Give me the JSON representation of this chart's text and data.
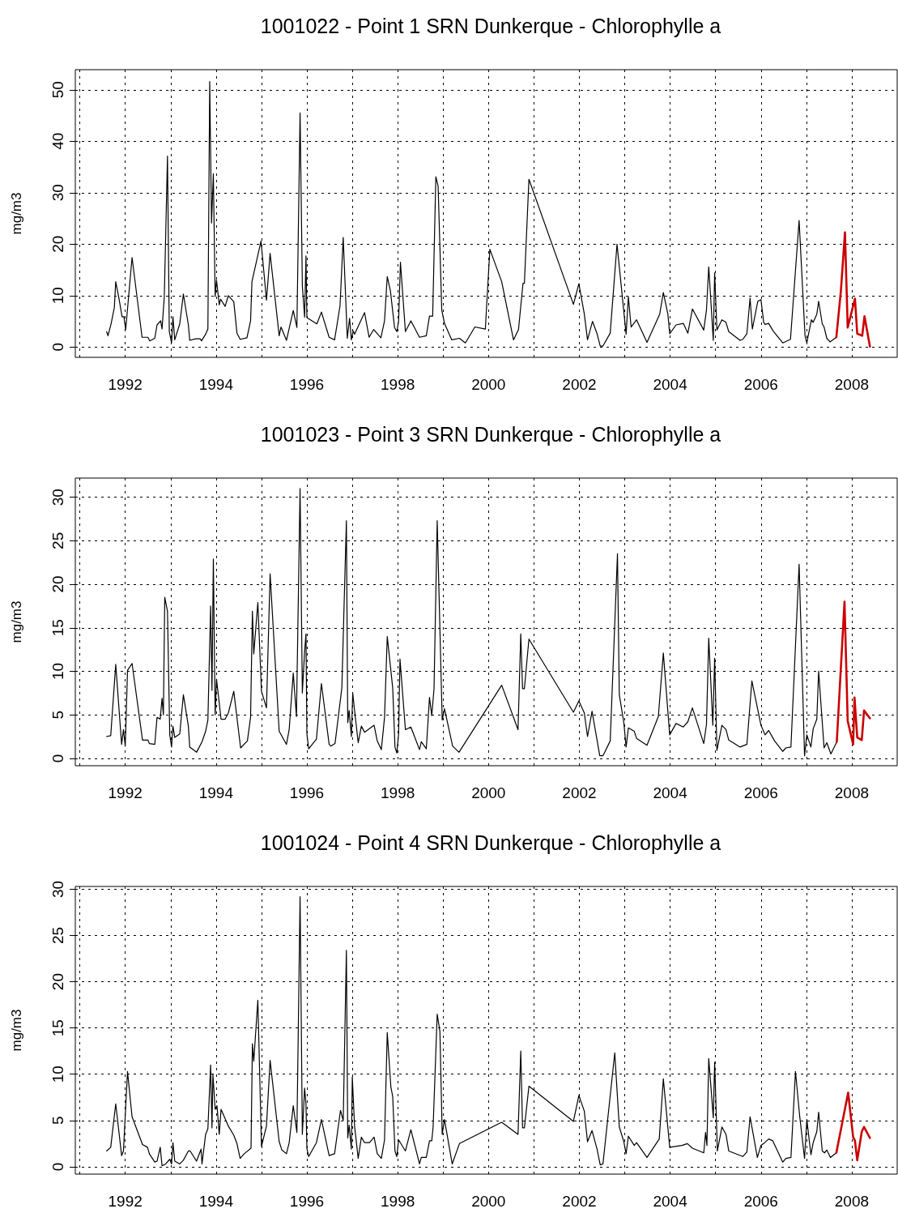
{
  "chart_data": [
    {
      "type": "line",
      "title": "1001022 - Point 1 SRN Dunkerque - Chlorophylle a",
      "ylabel": "mg/m3",
      "xlim": [
        1990.9,
        2009.0
      ],
      "xticks": [
        {
          "value": 1991,
          "label": null
        },
        1992,
        {
          "value": 1993,
          "label": null
        },
        1994,
        {
          "value": 1995,
          "label": null
        },
        1996,
        {
          "value": 1997,
          "label": null
        },
        1998,
        {
          "value": 1999,
          "label": null
        },
        2000,
        {
          "value": 2001,
          "label": null
        },
        2002,
        {
          "value": 2003,
          "label": null
        },
        2004,
        {
          "value": 2005,
          "label": null
        },
        2006,
        {
          "value": 2007,
          "label": null
        },
        2008
      ],
      "ylim": [
        -2,
        53.9
      ],
      "yticks": [
        0,
        10,
        20,
        30,
        40,
        50
      ],
      "grid": true,
      "marker": "none",
      "series": [
        {
          "color": "#000000",
          "x": [
            1991.59,
            1991.62,
            1991.69,
            1991.76,
            1991.79,
            1991.86,
            1991.93,
            1991.97,
            1992.01,
            1992.15,
            1992.37,
            1992.5,
            1992.54,
            1992.65,
            1992.7,
            1992.78,
            1992.81,
            1992.86,
            1992.93,
            1992.97,
            1993.02,
            1993.05,
            1993.09,
            1993.2,
            1993.28,
            1993.39,
            1993.42,
            1993.55,
            1993.65,
            1993.68,
            1993.77,
            1993.82,
            1993.86,
            1993.9,
            1993.94,
            1993.98,
            1994.01,
            1994.07,
            1994.1,
            1994.2,
            1994.27,
            1994.39,
            1994.46,
            1994.53,
            1994.68,
            1994.76,
            1994.79,
            1994.99,
            1995.11,
            1995.19,
            1995.39,
            1995.43,
            1995.55,
            1995.7,
            1995.78,
            1995.85,
            1995.9,
            1995.95,
            1995.98,
            1996.0,
            1996.22,
            1996.32,
            1996.49,
            1996.61,
            1996.73,
            1996.8,
            1996.89,
            1996.94,
            1996.98,
            1997.02,
            1997.05,
            1997.27,
            1997.37,
            1997.47,
            1997.63,
            1997.71,
            1997.77,
            1997.84,
            1997.93,
            1997.98,
            1998.02,
            1998.06,
            1998.17,
            1998.29,
            1998.48,
            1998.63,
            1998.7,
            1998.77,
            1998.84,
            1998.89,
            1998.97,
            1999.03,
            1999.19,
            1999.36,
            1999.49,
            1999.7,
            1999.93,
            2000.03,
            2000.29,
            2000.55,
            2000.66,
            2000.76,
            2000.79,
            2000.89,
            2001.87,
            2001.99,
            2002.11,
            2002.18,
            2002.29,
            2002.39,
            2002.46,
            2002.52,
            2002.68,
            2002.83,
            2003.03,
            2003.08,
            2003.14,
            2003.26,
            2003.49,
            2003.77,
            2003.85,
            2003.95,
            2003.99,
            2004.13,
            2004.29,
            2004.39,
            2004.49,
            2004.74,
            2004.8,
            2004.85,
            2004.95,
            2004.98,
            2005.03,
            2005.14,
            2005.23,
            2005.29,
            2005.54,
            2005.6,
            2005.69,
            2005.76,
            2005.81,
            2005.93,
            2006.0,
            2006.06,
            2006.09,
            2006.17,
            2006.27,
            2006.48,
            2006.65,
            2006.84,
            2006.97,
            2007.01,
            2007.11,
            2007.15,
            2007.23,
            2007.27,
            2007.35,
            2007.39,
            2007.45,
            2007.52,
            2007.66
          ],
          "values": [
            3.0,
            2.2,
            4.6,
            7.7,
            12.7,
            9.5,
            5.9,
            5.9,
            3.4,
            17.4,
            1.9,
            1.9,
            1.2,
            1.7,
            4.3,
            5.1,
            3.5,
            9.8,
            37.1,
            3.0,
            0.8,
            5.9,
            1.4,
            4.5,
            10.3,
            4.3,
            1.3,
            1.6,
            1.6,
            1.2,
            2.5,
            3.5,
            51.6,
            24.1,
            33.7,
            9.8,
            13.0,
            8.2,
            9.3,
            7.9,
            10.0,
            8.8,
            2.7,
            1.5,
            1.8,
            5.1,
            12.7,
            20.6,
            9.1,
            18.2,
            2.2,
            3.9,
            1.3,
            7.1,
            3.8,
            45.5,
            11.9,
            5.8,
            17.7,
            5.7,
            4.5,
            6.8,
            1.9,
            1.4,
            8.0,
            21.3,
            1.7,
            5.6,
            1.4,
            3.1,
            2.5,
            6.7,
            1.9,
            3.4,
            1.8,
            5.1,
            13.7,
            10.9,
            3.8,
            3.0,
            5.0,
            16.5,
            3.0,
            5.1,
            1.9,
            2.2,
            6.0,
            6.0,
            33.1,
            31.3,
            7.2,
            4.6,
            1.4,
            1.7,
            0.8,
            3.9,
            3.5,
            19.0,
            12.7,
            1.4,
            3.4,
            12.4,
            12.4,
            32.6,
            8.3,
            12.3,
            6.4,
            1.4,
            5.0,
            2.6,
            0.2,
            0.2,
            2.7,
            20.0,
            2.5,
            9.8,
            3.9,
            5.3,
            0.9,
            6.4,
            10.6,
            6.4,
            2.6,
            4.3,
            4.6,
            2.7,
            7.4,
            3.3,
            7.2,
            15.6,
            1.3,
            14.4,
            3.3,
            5.3,
            4.8,
            3.0,
            1.3,
            1.5,
            2.6,
            9.5,
            3.5,
            8.9,
            9.2,
            4.8,
            4.4,
            4.6,
            3.1,
            0.8,
            1.5,
            24.6,
            2.2,
            0.8,
            5.3,
            4.8,
            6.4,
            8.9,
            4.5,
            3.9,
            1.7,
            1.0,
            1.9
          ]
        },
        {
          "color": "#cc0000",
          "x": [
            2007.66,
            2007.76,
            2007.85,
            2007.91,
            2008.07,
            2008.12,
            2008.23,
            2008.28,
            2008.4
          ],
          "values": [
            1.9,
            10.9,
            22.3,
            3.8,
            9.4,
            2.6,
            2.2,
            6.0,
            0.1
          ]
        }
      ]
    },
    {
      "type": "line",
      "title": "1001023 - Point 3 SRN Dunkerque - Chlorophylle a",
      "ylabel": "mg/m3",
      "xlim": [
        1990.9,
        2009.0
      ],
      "xticks": [
        {
          "value": 1991,
          "label": null
        },
        1992,
        {
          "value": 1993,
          "label": null
        },
        1994,
        {
          "value": 1995,
          "label": null
        },
        1996,
        {
          "value": 1997,
          "label": null
        },
        1998,
        {
          "value": 1999,
          "label": null
        },
        2000,
        {
          "value": 2001,
          "label": null
        },
        2002,
        {
          "value": 2003,
          "label": null
        },
        2004,
        {
          "value": 2005,
          "label": null
        },
        2006,
        {
          "value": 2007,
          "label": null
        },
        2008
      ],
      "ylim": [
        -0.85,
        32.2
      ],
      "yticks": [
        0,
        5,
        10,
        15,
        20,
        25,
        30
      ],
      "grid": true,
      "marker": "none",
      "series": [
        {
          "color": "#000000",
          "x": [
            1991.59,
            1991.68,
            1991.79,
            1991.92,
            1991.96,
            1992.0,
            1992.05,
            1992.15,
            1992.38,
            1992.5,
            1992.53,
            1992.65,
            1992.7,
            1992.77,
            1992.81,
            1992.84,
            1992.87,
            1992.93,
            1992.98,
            1993.02,
            1993.05,
            1993.09,
            1993.2,
            1993.28,
            1993.39,
            1993.42,
            1993.57,
            1993.69,
            1993.77,
            1993.82,
            1993.88,
            1993.91,
            1993.94,
            1993.98,
            1994.01,
            1994.11,
            1994.2,
            1994.27,
            1994.39,
            1994.54,
            1994.69,
            1994.76,
            1994.8,
            1994.83,
            1994.92,
            1995.0,
            1995.11,
            1995.19,
            1995.39,
            1995.55,
            1995.61,
            1995.7,
            1995.77,
            1995.85,
            1995.9,
            1995.95,
            1995.98,
            1996.0,
            1996.04,
            1996.21,
            1996.32,
            1996.49,
            1996.53,
            1996.62,
            1996.77,
            1996.87,
            1996.9,
            1996.93,
            1996.98,
            1997.01,
            1997.05,
            1997.13,
            1997.2,
            1997.27,
            1997.48,
            1997.55,
            1997.64,
            1997.71,
            1997.77,
            1997.89,
            1997.94,
            1997.98,
            1998.02,
            1998.05,
            1998.17,
            1998.29,
            1998.48,
            1998.52,
            1998.63,
            1998.7,
            1998.75,
            1998.8,
            1998.87,
            1998.98,
            1999.03,
            1999.21,
            1999.35,
            2000.29,
            2000.65,
            2000.71,
            2000.75,
            2000.79,
            2000.89,
            2001.87,
            2001.99,
            2002.11,
            2002.18,
            2002.28,
            2002.45,
            2002.52,
            2002.68,
            2002.84,
            2002.88,
            2002.98,
            2003.03,
            2003.08,
            2003.21,
            2003.26,
            2003.49,
            2003.74,
            2003.85,
            2003.99,
            2004.13,
            2004.29,
            2004.39,
            2004.49,
            2004.74,
            2004.8,
            2004.85,
            2004.94,
            2004.98,
            2005.03,
            2005.14,
            2005.23,
            2005.29,
            2005.54,
            2005.69,
            2005.8,
            2006.0,
            2006.09,
            2006.17,
            2006.3,
            2006.48,
            2006.55,
            2006.66,
            2006.84,
            2006.96,
            2007.01,
            2007.1,
            2007.15,
            2007.23,
            2007.27,
            2007.39,
            2007.45,
            2007.54,
            2007.67
          ],
          "values": [
            2.5,
            2.6,
            10.8,
            1.6,
            3.3,
            1.4,
            10.1,
            10.9,
            2.1,
            2.1,
            1.7,
            1.6,
            4.7,
            4.5,
            6.9,
            5.0,
            18.5,
            16.9,
            2.7,
            1.3,
            3.7,
            2.4,
            2.8,
            7.3,
            3.7,
            1.3,
            0.7,
            1.9,
            3.1,
            4.4,
            17.5,
            7.8,
            22.9,
            5.0,
            9.1,
            4.5,
            4.5,
            5.2,
            7.7,
            1.2,
            2.0,
            4.7,
            16.9,
            12.0,
            17.9,
            7.7,
            5.8,
            21.2,
            3.1,
            1.6,
            3.3,
            9.8,
            4.8,
            31.0,
            7.5,
            12.3,
            14.3,
            2.8,
            1.1,
            2.2,
            8.6,
            1.6,
            1.4,
            1.7,
            8.1,
            27.3,
            4.1,
            5.5,
            2.5,
            7.5,
            5.5,
            1.8,
            3.7,
            3.0,
            3.8,
            2.0,
            1.0,
            4.7,
            14.0,
            8.1,
            1.3,
            0.6,
            2.8,
            11.4,
            3.3,
            3.6,
            1.0,
            1.9,
            1.1,
            7.0,
            4.9,
            8.0,
            27.3,
            4.4,
            5.7,
            1.4,
            0.7,
            8.4,
            3.3,
            14.3,
            8.0,
            8.0,
            13.7,
            5.3,
            6.6,
            5.2,
            2.5,
            5.4,
            0.3,
            0.3,
            2.0,
            23.5,
            7.3,
            4.1,
            1.3,
            3.5,
            3.1,
            2.3,
            1.5,
            4.8,
            12.1,
            2.7,
            4.0,
            3.6,
            4.2,
            5.8,
            1.7,
            3.9,
            13.8,
            3.8,
            11.5,
            0.9,
            3.8,
            3.3,
            2.1,
            1.3,
            1.6,
            8.9,
            3.8,
            2.7,
            3.2,
            2.0,
            0.8,
            1.2,
            1.3,
            22.3,
            0.3,
            2.7,
            1.3,
            3.4,
            4.5,
            10.0,
            1.2,
            1.8,
            0.5,
            1.9
          ]
        },
        {
          "color": "#cc0000",
          "x": [
            2007.67,
            2007.84,
            2007.91,
            2008.03,
            2008.06,
            2008.12,
            2008.22,
            2008.27,
            2008.4
          ],
          "values": [
            1.9,
            18.0,
            4.3,
            1.6,
            7.0,
            2.4,
            2.1,
            5.5,
            4.6
          ]
        }
      ]
    },
    {
      "type": "line",
      "title": "1001024 - Point 4 SRN Dunkerque - Chlorophylle a",
      "ylabel": "mg/m3",
      "xlim": [
        1990.9,
        2009.0
      ],
      "xticks": [
        {
          "value": 1991,
          "label": null
        },
        1992,
        {
          "value": 1993,
          "label": null
        },
        1994,
        {
          "value": 1995,
          "label": null
        },
        1996,
        {
          "value": 1997,
          "label": null
        },
        1998,
        {
          "value": 1999,
          "label": null
        },
        2000,
        {
          "value": 2001,
          "label": null
        },
        2002,
        {
          "value": 2003,
          "label": null
        },
        2004,
        {
          "value": 2005,
          "label": null
        },
        2006,
        {
          "value": 2007,
          "label": null
        },
        2008
      ],
      "ylim": [
        -0.8,
        30.3
      ],
      "yticks": [
        0,
        5,
        10,
        15,
        20,
        25,
        30
      ],
      "grid": true,
      "marker": "none",
      "series": [
        {
          "color": "#000000",
          "x": [
            1991.59,
            1991.68,
            1991.79,
            1991.92,
            1991.96,
            1992.05,
            1992.15,
            1992.38,
            1992.49,
            1992.53,
            1992.65,
            1992.7,
            1992.77,
            1992.81,
            1992.89,
            1992.98,
            1993.02,
            1993.05,
            1993.09,
            1993.2,
            1993.28,
            1993.39,
            1993.43,
            1993.57,
            1993.67,
            1993.69,
            1993.77,
            1993.82,
            1993.88,
            1993.91,
            1993.93,
            1993.98,
            1994.02,
            1994.07,
            1994.11,
            1994.27,
            1994.39,
            1994.46,
            1994.53,
            1994.62,
            1994.77,
            1994.8,
            1994.83,
            1994.92,
            1995.0,
            1995.11,
            1995.19,
            1995.39,
            1995.45,
            1995.55,
            1995.61,
            1995.7,
            1995.78,
            1995.85,
            1995.9,
            1995.95,
            1995.98,
            1996.0,
            1996.04,
            1996.21,
            1996.32,
            1996.49,
            1996.61,
            1996.74,
            1996.8,
            1996.87,
            1996.9,
            1996.93,
            1996.98,
            1997.0,
            1997.05,
            1997.13,
            1997.2,
            1997.27,
            1997.38,
            1997.48,
            1997.55,
            1997.64,
            1997.71,
            1997.77,
            1997.85,
            1997.89,
            1997.94,
            1997.98,
            1998.02,
            1998.17,
            1998.29,
            1998.48,
            1998.52,
            1998.63,
            1998.7,
            1998.75,
            1998.78,
            1998.87,
            1998.93,
            1998.98,
            1999.03,
            1999.2,
            1999.36,
            2000.29,
            2000.65,
            2000.71,
            2000.75,
            2000.79,
            2000.89,
            2001.87,
            2001.99,
            2002.11,
            2002.18,
            2002.28,
            2002.39,
            2002.46,
            2002.52,
            2002.78,
            2002.88,
            2002.98,
            2003.03,
            2003.08,
            2003.21,
            2003.26,
            2003.49,
            2003.76,
            2003.85,
            2003.99,
            2004.26,
            2004.38,
            2004.49,
            2004.74,
            2004.78,
            2004.81,
            2004.85,
            2004.95,
            2004.98,
            2005.04,
            2005.14,
            2005.23,
            2005.29,
            2005.6,
            2005.69,
            2005.76,
            2005.92,
            2006.0,
            2006.06,
            2006.17,
            2006.26,
            2006.48,
            2006.55,
            2006.66,
            2006.76,
            2006.85,
            2006.96,
            2007.01,
            2007.1,
            2007.15,
            2007.23,
            2007.27,
            2007.35,
            2007.4,
            2007.45,
            2007.53,
            2007.66
          ],
          "values": [
            1.7,
            2.1,
            6.8,
            1.2,
            1.7,
            10.3,
            5.4,
            2.4,
            2.1,
            1.4,
            0.5,
            0.6,
            2.1,
            0.1,
            0.3,
            0.8,
            0.3,
            2.6,
            0.6,
            0.3,
            0.7,
            1.7,
            1.7,
            0.6,
            1.9,
            0.3,
            3.5,
            4.1,
            11.0,
            4.2,
            10.0,
            6.2,
            6.6,
            3.5,
            6.2,
            4.4,
            3.4,
            2.5,
            0.9,
            1.4,
            2.0,
            13.3,
            11.4,
            18.0,
            2.2,
            4.4,
            11.5,
            2.7,
            1.8,
            1.4,
            2.6,
            6.6,
            3.7,
            29.2,
            3.5,
            8.5,
            6.8,
            2.0,
            1.1,
            2.6,
            5.1,
            1.2,
            1.4,
            6.1,
            5.0,
            23.4,
            3.1,
            4.5,
            1.9,
            9.7,
            4.4,
            0.9,
            3.2,
            2.6,
            2.6,
            3.2,
            1.4,
            0.9,
            2.9,
            14.5,
            8.6,
            7.6,
            1.7,
            1.1,
            2.9,
            1.7,
            4.0,
            0.3,
            1.0,
            1.0,
            2.8,
            2.8,
            4.3,
            16.5,
            14.6,
            3.5,
            5.1,
            0.3,
            2.5,
            4.8,
            3.5,
            12.5,
            4.2,
            4.2,
            8.7,
            4.9,
            7.7,
            6.0,
            2.7,
            3.9,
            1.9,
            0.2,
            0.3,
            12.3,
            4.3,
            2.7,
            1.4,
            3.3,
            2.3,
            2.6,
            1.0,
            3.0,
            9.5,
            2.1,
            2.3,
            2.5,
            2.0,
            1.5,
            3.7,
            2.3,
            11.7,
            5.3,
            11.3,
            1.7,
            4.3,
            3.5,
            1.7,
            1.1,
            1.6,
            5.4,
            1.0,
            2.3,
            2.5,
            3.0,
            2.8,
            0.5,
            0.9,
            1.0,
            10.3,
            5.6,
            0.9,
            5.1,
            1.3,
            2.6,
            3.8,
            5.9,
            1.7,
            1.5,
            1.8,
            1.0,
            1.5
          ]
        },
        {
          "color": "#cc0000",
          "x": [
            2007.66,
            2007.92,
            2008.03,
            2008.07,
            2008.12,
            2008.22,
            2008.27,
            2008.4
          ],
          "values": [
            1.5,
            8.0,
            3.2,
            2.8,
            0.7,
            3.8,
            4.3,
            3.1
          ]
        }
      ]
    }
  ]
}
